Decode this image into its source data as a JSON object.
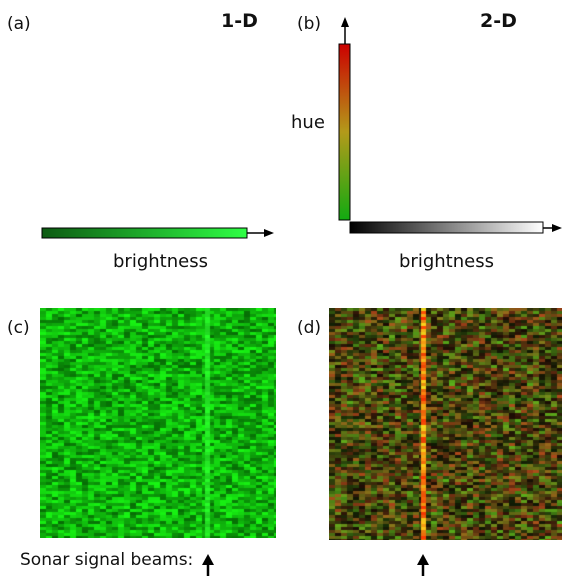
{
  "panels": {
    "a": {
      "label": "(a)",
      "title": "1-D",
      "axis_label": "brightness",
      "colors": {
        "dark": "#0d5a12",
        "bright": "#2fff45"
      }
    },
    "b": {
      "label": "(b)",
      "title": "2-D",
      "vertical_axis_label": "hue",
      "horizontal_axis_label": "brightness",
      "colors": {
        "hue_top": "#cc0000",
        "hue_mid": "#b39a1a",
        "hue_bottom": "#11aa11",
        "brightness_dark": "#000000",
        "brightness_light": "#ffffff"
      }
    },
    "c": {
      "label": "(c)",
      "colormap": "green-brightness"
    },
    "d": {
      "label": "(d)",
      "colormap": "hue-brightness"
    }
  },
  "footer": {
    "caption": "Sonar signal beams:"
  }
}
